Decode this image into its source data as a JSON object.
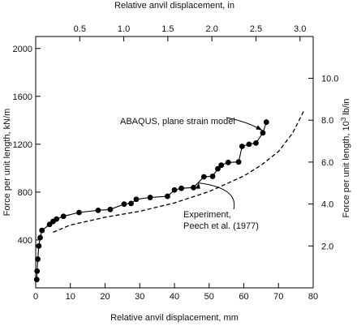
{
  "chart_data": {
    "type": "scatter",
    "title": "",
    "xlabel_bottom": "Relative anvil displacement, mm",
    "xlabel_top": "Relative anvil displacement, in",
    "ylabel_left": "Force per unit length,  kN/m",
    "ylabel_right_prefix": "Force per unit length, 10",
    "ylabel_right_exp": "3",
    "ylabel_right_suffix": " lb/in",
    "x_range_mm": [
      0,
      80
    ],
    "y_range_kNm": [
      0,
      2100
    ],
    "x_ticks_mm": [
      "0",
      "10",
      "20",
      "30",
      "40",
      "50",
      "60",
      "70",
      "80"
    ],
    "y_ticks_kNm": [
      "400",
      "800",
      "1200",
      "1600",
      "2000"
    ],
    "x_ticks_in": [
      "0.5",
      "1.0",
      "1.5",
      "2.0",
      "2.5",
      "3.0"
    ],
    "y_ticks_lbin": [
      "2.0",
      "4.0",
      "6.0",
      "8.0",
      "10.0"
    ],
    "grid": false,
    "series": [
      {
        "name": "ABAQUS, plane strain model",
        "style": "solid line with filled circle markers",
        "color": "#000000",
        "points": [
          [
            0.3,
            70
          ],
          [
            0.4,
            140
          ],
          [
            0.6,
            240
          ],
          [
            0.9,
            350
          ],
          [
            1.3,
            420
          ],
          [
            1.8,
            480
          ],
          [
            4.0,
            530
          ],
          [
            5.0,
            555
          ],
          [
            6.0,
            575
          ],
          [
            8.0,
            598
          ],
          [
            12.5,
            630
          ],
          [
            18.0,
            648
          ],
          [
            21.5,
            655
          ],
          [
            25.5,
            700
          ],
          [
            27.5,
            705
          ],
          [
            29.0,
            740
          ],
          [
            33.0,
            755
          ],
          [
            38.0,
            765
          ],
          [
            40.0,
            818
          ],
          [
            42.0,
            832
          ],
          [
            45.5,
            838
          ],
          [
            48.5,
            928
          ],
          [
            51.0,
            932
          ],
          [
            52.5,
            995
          ],
          [
            53.5,
            1025
          ],
          [
            55.5,
            1048
          ],
          [
            58.5,
            1052
          ],
          [
            59.5,
            1182
          ],
          [
            61.5,
            1200
          ],
          [
            63.5,
            1210
          ],
          [
            65.5,
            1295
          ],
          [
            66.5,
            1385
          ]
        ]
      },
      {
        "name": "Experiment, Peech et al. (1977)",
        "style": "dashed line",
        "color": "#000000",
        "points": [
          [
            5.0,
            465
          ],
          [
            10.0,
            525
          ],
          [
            20.0,
            590
          ],
          [
            30.0,
            640
          ],
          [
            40.0,
            710
          ],
          [
            50.0,
            805
          ],
          [
            60.0,
            935
          ],
          [
            65.0,
            1025
          ],
          [
            70.0,
            1140
          ],
          [
            74.0,
            1290
          ],
          [
            77.5,
            1490
          ]
        ]
      }
    ],
    "annotations": [
      {
        "label": "ABAQUS, plane strain model",
        "arrow_to": [
          65.8,
          1295
        ]
      },
      {
        "label": "Experiment,\nPeech et al. (1977)",
        "arrow_to": [
          47,
          890
        ]
      }
    ]
  }
}
